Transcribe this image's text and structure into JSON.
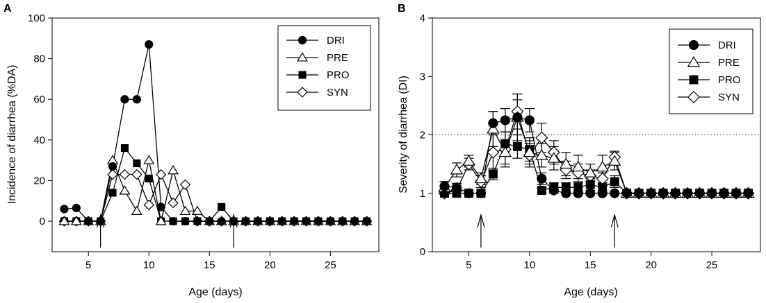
{
  "chart_data": [
    {
      "type": "line",
      "panel": "A",
      "xlabel": "Age (days)",
      "ylabel": "Incidence of diarrhea (%DA)",
      "xlim": [
        2,
        29
      ],
      "ylim": [
        -15,
        100
      ],
      "xticks": [
        5,
        10,
        15,
        20,
        25
      ],
      "yticks": [
        0,
        20,
        40,
        60,
        80,
        100
      ],
      "grid": false,
      "legend_position": "top-right",
      "arrows_at_x": [
        6,
        17
      ],
      "series": [
        {
          "name": "DRI",
          "marker": "circle",
          "fill": "black",
          "x": [
            3,
            4,
            5,
            6,
            7,
            8,
            9,
            10,
            11,
            12,
            13,
            14,
            15,
            16,
            17,
            18,
            19,
            20,
            21,
            22,
            23,
            24,
            25,
            26,
            27,
            28
          ],
          "y": [
            6,
            6.5,
            0,
            0,
            27,
            60,
            60,
            87,
            7,
            0,
            0,
            0,
            0,
            0,
            0,
            0,
            0,
            0,
            0,
            0,
            0,
            0,
            0,
            0,
            0,
            0
          ]
        },
        {
          "name": "PRE",
          "marker": "triangle",
          "fill": "white",
          "x": [
            3,
            4,
            5,
            6,
            7,
            8,
            9,
            10,
            11,
            12,
            13,
            14,
            15,
            16,
            17,
            18,
            19,
            20,
            21,
            22,
            23,
            24,
            25,
            26,
            27,
            28
          ],
          "y": [
            0,
            0,
            0,
            0,
            30,
            15,
            5,
            30,
            0,
            25,
            5,
            5,
            0,
            0,
            0,
            0,
            0,
            0,
            0,
            0,
            0,
            0,
            0,
            0,
            0,
            0
          ]
        },
        {
          "name": "PRO",
          "marker": "square",
          "fill": "black",
          "x": [
            3,
            4,
            5,
            6,
            7,
            8,
            9,
            10,
            11,
            12,
            13,
            14,
            15,
            16,
            17,
            18,
            19,
            20,
            21,
            22,
            23,
            24,
            25,
            26,
            27,
            28
          ],
          "y": [
            0,
            0,
            0,
            0,
            14,
            36,
            28.5,
            21,
            0,
            0,
            0,
            0,
            0,
            7,
            0,
            0,
            0,
            0,
            0,
            0,
            0,
            0,
            0,
            0,
            0,
            0
          ]
        },
        {
          "name": "SYN",
          "marker": "diamond",
          "fill": "white",
          "x": [
            3,
            4,
            5,
            6,
            7,
            8,
            9,
            10,
            11,
            12,
            13,
            14,
            15,
            16,
            17,
            18,
            19,
            20,
            21,
            22,
            23,
            24,
            25,
            26,
            27,
            28
          ],
          "y": [
            0,
            0,
            0,
            0,
            23,
            23,
            23,
            8,
            23,
            9,
            18,
            0,
            0,
            0,
            0,
            0,
            0,
            0,
            0,
            0,
            0,
            0,
            0,
            0,
            0,
            0
          ]
        }
      ]
    },
    {
      "type": "line",
      "panel": "B",
      "xlabel": "Age (days)",
      "ylabel": "Severity of diarrhea (DI)",
      "xlim": [
        2,
        29
      ],
      "ylim": [
        0,
        4
      ],
      "xticks": [
        5,
        10,
        15,
        20,
        25
      ],
      "yticks": [
        0,
        1,
        2,
        3,
        4
      ],
      "grid": false,
      "reference_line_y": 2,
      "legend_position": "top-right",
      "arrows_at_x": [
        6,
        17
      ],
      "series": [
        {
          "name": "DRI",
          "marker": "circle",
          "fill": "black",
          "x": [
            3,
            4,
            5,
            6,
            7,
            8,
            9,
            10,
            11,
            12,
            13,
            14,
            15,
            16,
            17,
            18,
            19,
            20,
            21,
            22,
            23,
            24,
            25,
            26,
            27,
            28
          ],
          "y": [
            1.12,
            1.1,
            1,
            1,
            2.2,
            2.25,
            2.3,
            2.25,
            1.25,
            1.05,
            1,
            1,
            1,
            1,
            1,
            1,
            1,
            1,
            1,
            1,
            1,
            1,
            1,
            1,
            1,
            1
          ],
          "err": [
            0.08,
            0.07,
            0,
            0,
            0.2,
            0.2,
            0.3,
            0.2,
            0.1,
            0.05,
            0,
            0,
            0,
            0,
            0,
            0,
            0,
            0,
            0,
            0,
            0,
            0,
            0,
            0,
            0,
            0
          ]
        },
        {
          "name": "PRE",
          "marker": "triangle",
          "fill": "white",
          "x": [
            3,
            4,
            5,
            6,
            7,
            8,
            9,
            10,
            11,
            12,
            13,
            14,
            15,
            16,
            17,
            18,
            19,
            20,
            21,
            22,
            23,
            24,
            25,
            26,
            27,
            28
          ],
          "y": [
            1.1,
            1.4,
            1.55,
            1.25,
            2.1,
            1.7,
            2.3,
            1.7,
            1.65,
            1.6,
            1.5,
            1.45,
            1.35,
            1.45,
            1.55,
            1,
            1,
            1,
            1,
            1,
            1,
            1,
            1,
            1,
            1,
            1
          ],
          "err": [
            0.1,
            0.12,
            0.1,
            0.1,
            0.3,
            0.2,
            0.4,
            0.2,
            0.2,
            0.2,
            0.2,
            0.2,
            0.15,
            0.2,
            0.15,
            0,
            0,
            0,
            0,
            0,
            0,
            0,
            0,
            0,
            0,
            0
          ]
        },
        {
          "name": "PRO",
          "marker": "square",
          "fill": "black",
          "x": [
            3,
            4,
            5,
            6,
            7,
            8,
            9,
            10,
            11,
            12,
            13,
            14,
            15,
            16,
            17,
            18,
            19,
            20,
            21,
            22,
            23,
            24,
            25,
            26,
            27,
            28
          ],
          "y": [
            1,
            1,
            1,
            1,
            1.33,
            1.85,
            1.8,
            1.75,
            1.05,
            1.1,
            1.1,
            1.1,
            1.15,
            1.1,
            1.2,
            1,
            1,
            1,
            1,
            1,
            1,
            1,
            1,
            1,
            1,
            1
          ],
          "err": [
            0,
            0,
            0,
            0,
            0.1,
            0.2,
            0.2,
            0.2,
            0.05,
            0.08,
            0.08,
            0.08,
            0.1,
            0.08,
            0.1,
            0,
            0,
            0,
            0,
            0,
            0,
            0,
            0,
            0,
            0,
            0
          ]
        },
        {
          "name": "SYN",
          "marker": "diamond",
          "fill": "white",
          "x": [
            3,
            4,
            5,
            6,
            7,
            8,
            9,
            10,
            11,
            12,
            13,
            14,
            15,
            16,
            17,
            18,
            19,
            20,
            21,
            22,
            23,
            24,
            25,
            26,
            27,
            28
          ],
          "y": [
            1,
            1.05,
            1.5,
            1.2,
            1.7,
            1.75,
            2.4,
            1.65,
            1.95,
            1.7,
            1.4,
            1.35,
            1.3,
            1.25,
            1.62,
            1,
            1,
            1,
            1,
            1,
            1,
            1,
            1,
            1,
            1,
            1
          ],
          "err": [
            0,
            0.05,
            0.1,
            0.1,
            0.3,
            0.3,
            0.3,
            0.2,
            0.25,
            0.2,
            0.15,
            0.15,
            0.1,
            0.1,
            0.1,
            0,
            0,
            0,
            0,
            0,
            0,
            0,
            0,
            0,
            0,
            0
          ]
        }
      ]
    }
  ]
}
